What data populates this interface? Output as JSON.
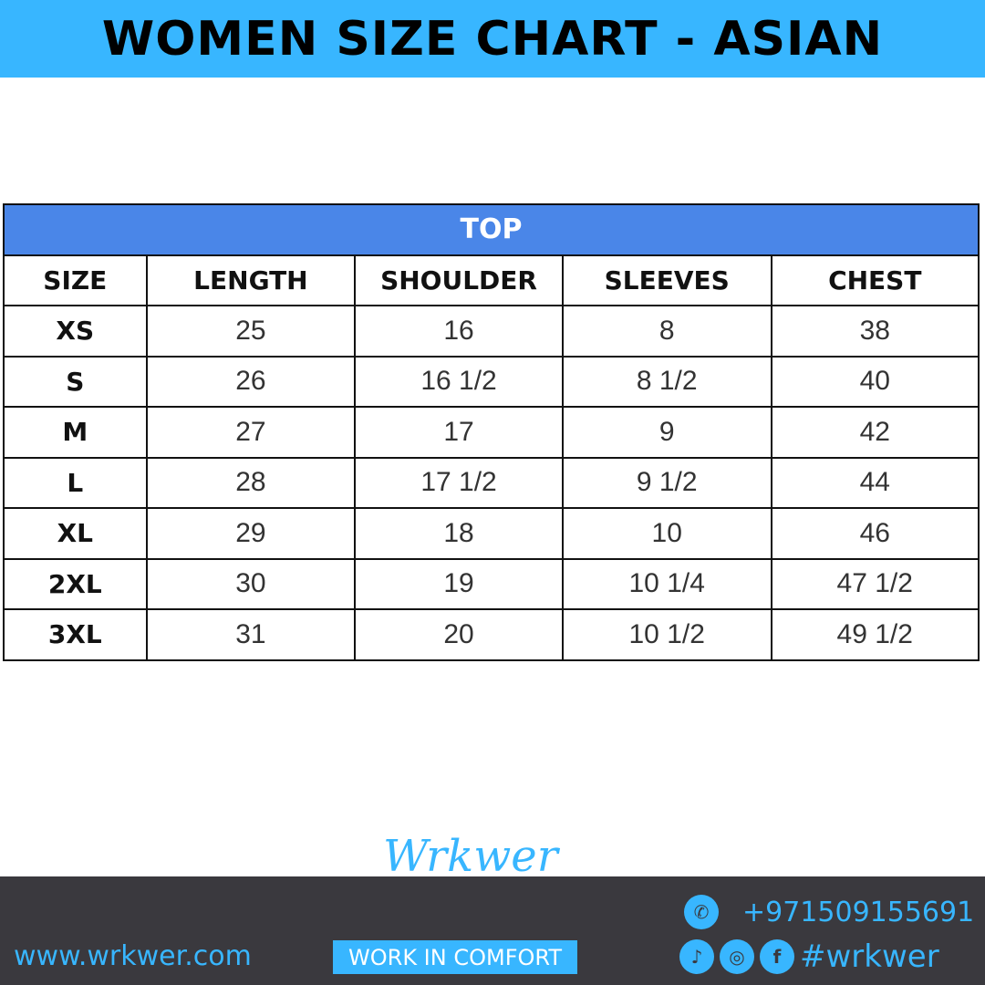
{
  "title": "WOMEN SIZE CHART - ASIAN",
  "table": {
    "group_header": "TOP",
    "columns": [
      "SIZE",
      "LENGTH",
      "SHOULDER",
      "SLEEVES",
      "CHEST"
    ],
    "rows": [
      [
        "XS",
        "25",
        "16",
        "8",
        "38"
      ],
      [
        "S",
        "26",
        "16 1/2",
        "8 1/2",
        "40"
      ],
      [
        "M",
        "27",
        "17",
        "9",
        "42"
      ],
      [
        "L",
        "28",
        "17 1/2",
        "9 1/2",
        "44"
      ],
      [
        "XL",
        "29",
        "18",
        "10",
        "46"
      ],
      [
        "2XL",
        "30",
        "19",
        "10 1/4",
        "47 1/2"
      ],
      [
        "3XL",
        "31",
        "20",
        "10 1/2",
        "49 1/2"
      ]
    ]
  },
  "footer": {
    "website": "www.wrkwer.com",
    "logo": "Wrkwer",
    "tagline": "WORK IN COMFORT",
    "phone": "+971509155691",
    "hashtag": "#wrkwer",
    "icons": [
      "phone-icon",
      "tiktok-icon",
      "instagram-icon",
      "facebook-icon"
    ]
  },
  "colors": {
    "brand": "#38b6ff",
    "table_header": "#4a86e8",
    "footer_bg": "#3a393e"
  }
}
